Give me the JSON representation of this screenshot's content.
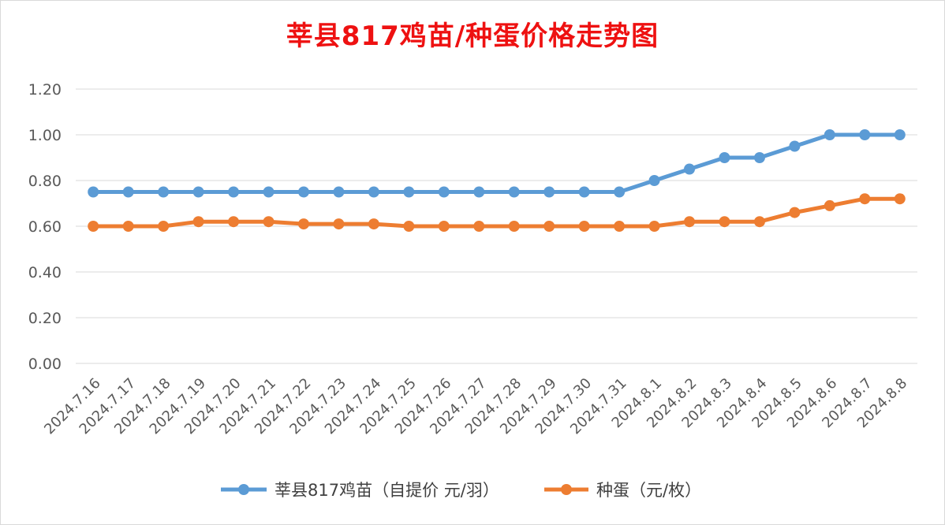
{
  "chart_data": {
    "type": "line",
    "title": "莘县817鸡苗/种蛋价格走势图",
    "categories": [
      "2024.7.16",
      "2024.7.17",
      "2024.7.18",
      "2024.7.19",
      "2024.7.20",
      "2024.7.21",
      "2024.7.22",
      "2024.7.23",
      "2024.7.24",
      "2024.7.25",
      "2024.7.26",
      "2024.7.27",
      "2024.7.28",
      "2024.7.29",
      "2024.7.30",
      "2024.7.31",
      "2024.8.1",
      "2024.8.2",
      "2024.8.3",
      "2024.8.4",
      "2024.8.5",
      "2024.8.6",
      "2024.8.7",
      "2024.8.8"
    ],
    "series": [
      {
        "name": "莘县817鸡苗（自提价 元/羽）",
        "color": "#5b9bd5",
        "values": [
          0.75,
          0.75,
          0.75,
          0.75,
          0.75,
          0.75,
          0.75,
          0.75,
          0.75,
          0.75,
          0.75,
          0.75,
          0.75,
          0.75,
          0.75,
          0.75,
          0.8,
          0.85,
          0.9,
          0.9,
          0.95,
          1.0,
          1.0,
          1.0
        ]
      },
      {
        "name": "种蛋（元/枚）",
        "color": "#ed7d31",
        "values": [
          0.6,
          0.6,
          0.6,
          0.62,
          0.62,
          0.62,
          0.61,
          0.61,
          0.61,
          0.6,
          0.6,
          0.6,
          0.6,
          0.6,
          0.6,
          0.6,
          0.6,
          0.62,
          0.62,
          0.62,
          0.66,
          0.69,
          0.72,
          0.72
        ]
      }
    ],
    "ylim": [
      0,
      1.2
    ],
    "yticks": [
      "0.00",
      "0.20",
      "0.40",
      "0.60",
      "0.80",
      "1.00",
      "1.20"
    ],
    "xlabel": "",
    "ylabel": "",
    "grid": true,
    "legend": "bottom",
    "title_color": "#ee1111"
  }
}
